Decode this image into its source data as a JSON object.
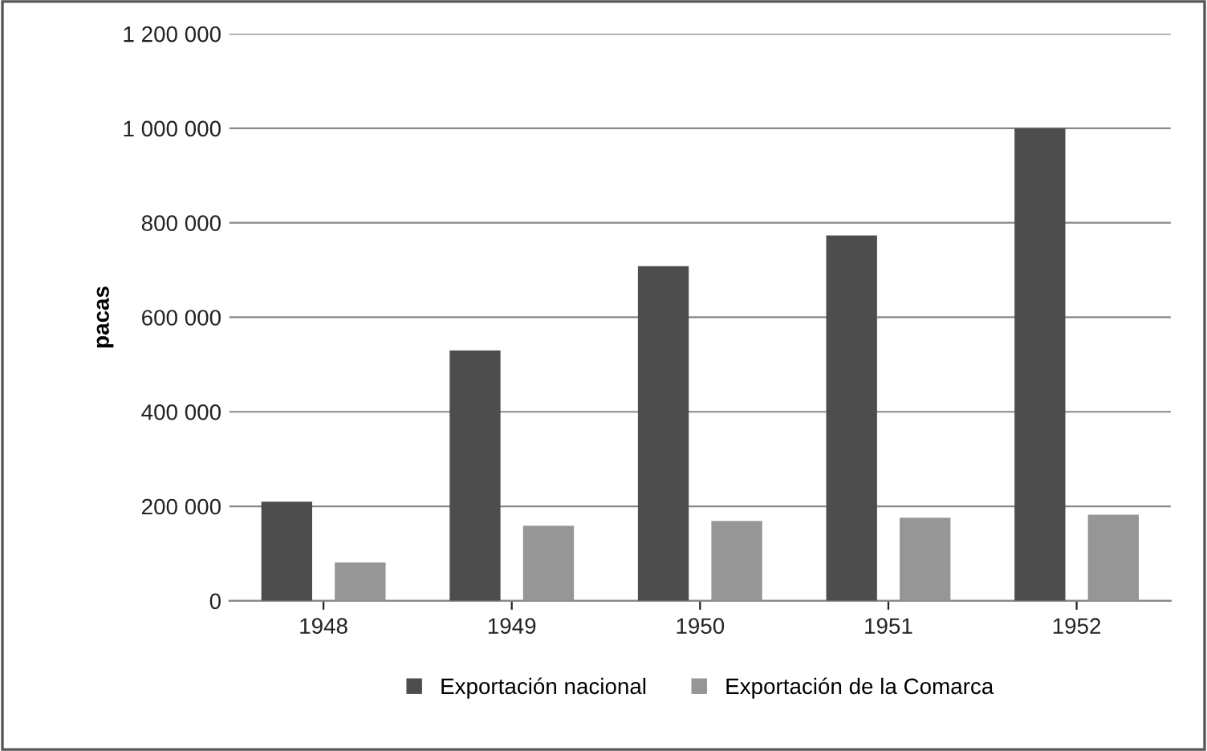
{
  "chart_data": {
    "type": "bar",
    "ylabel": "pacas",
    "categories": [
      "1948",
      "1949",
      "1950",
      "1951",
      "1952"
    ],
    "series": [
      {
        "name": "Exportación nacional",
        "color": "#4d4d4d",
        "values": [
          210000,
          530000,
          708000,
          773000,
          1000000
        ]
      },
      {
        "name": "Exportación de la Comarca",
        "color": "#969696",
        "values": [
          81000,
          159000,
          169000,
          176000,
          182000
        ]
      }
    ],
    "ylim": [
      0,
      1200000
    ],
    "yticks": [
      {
        "value": 0,
        "label": "0"
      },
      {
        "value": 200000,
        "label": "200 000"
      },
      {
        "value": 400000,
        "label": "400 000"
      },
      {
        "value": 600000,
        "label": "600 000"
      },
      {
        "value": 800000,
        "label": "800 000"
      },
      {
        "value": 1000000,
        "label": "1 000 000"
      },
      {
        "value": 1200000,
        "label": "1 200 000"
      }
    ],
    "grid": "y",
    "legend": "bottom"
  }
}
